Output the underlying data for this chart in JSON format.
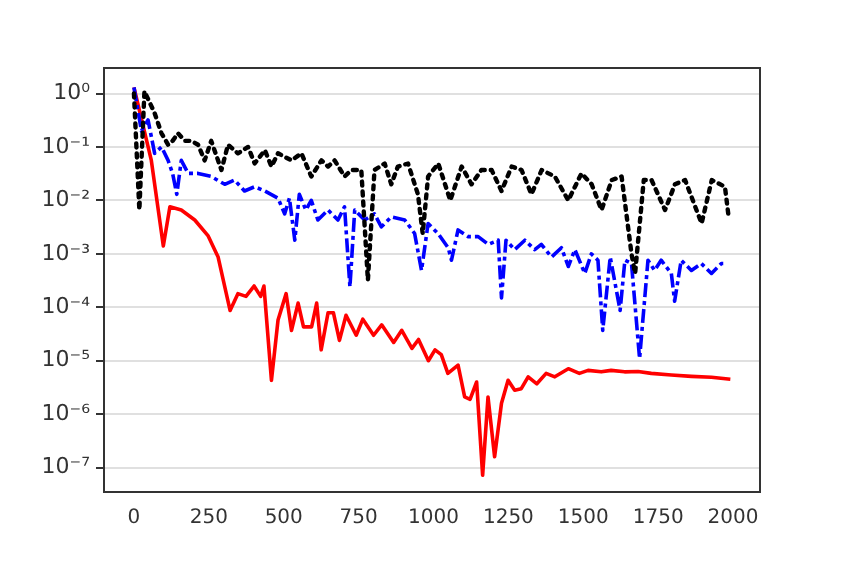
{
  "chart_data": {
    "type": "line",
    "log": "y",
    "grid": "y",
    "legend": false,
    "marker": "none",
    "xlim": [
      -100,
      2090
    ],
    "xticks": [
      0,
      250,
      500,
      750,
      1000,
      1250,
      1500,
      1750,
      2000
    ],
    "ylim": [
      3.5e-08,
      3
    ],
    "yticks": [
      {
        "value": 1e-07,
        "label": "10⁻⁷"
      },
      {
        "value": 1e-06,
        "label": "10⁻⁶"
      },
      {
        "value": 1e-05,
        "label": "10⁻⁵"
      },
      {
        "value": 0.0001,
        "label": "10⁻⁴"
      },
      {
        "value": 0.001,
        "label": "10⁻³"
      },
      {
        "value": 0.01,
        "label": "10⁻²"
      },
      {
        "value": 0.1,
        "label": "10⁻¹"
      },
      {
        "value": 1,
        "label": "10⁰"
      }
    ],
    "series": [
      {
        "color": "#000000",
        "line_style": "dotted",
        "x": [
          0,
          18,
          35,
          69,
          92,
          114,
          129,
          147,
          170,
          192,
          214,
          236,
          258,
          292,
          314,
          347,
          381,
          403,
          437,
          459,
          481,
          526,
          559,
          592,
          626,
          648,
          670,
          703,
          726,
          759,
          781,
          803,
          837,
          859,
          881,
          915,
          948,
          964,
          982,
          1016,
          1056,
          1094,
          1127,
          1160,
          1194,
          1227,
          1261,
          1294,
          1327,
          1361,
          1405,
          1450,
          1494,
          1528,
          1561,
          1595,
          1628,
          1661,
          1673,
          1702,
          1728,
          1773,
          1806,
          1840,
          1895,
          1929,
          1973,
          1984
        ],
        "values": [
          1.0,
          0.0066,
          1.1,
          0.43,
          0.18,
          0.11,
          0.13,
          0.18,
          0.13,
          0.13,
          0.11,
          0.056,
          0.13,
          0.037,
          0.11,
          0.076,
          0.1,
          0.049,
          0.087,
          0.043,
          0.076,
          0.056,
          0.076,
          0.028,
          0.056,
          0.043,
          0.056,
          0.028,
          0.037,
          0.037,
          0.00032,
          0.037,
          0.049,
          0.02,
          0.043,
          0.049,
          0.013,
          0.0024,
          0.028,
          0.049,
          0.01,
          0.043,
          0.02,
          0.037,
          0.037,
          0.015,
          0.043,
          0.037,
          0.013,
          0.037,
          0.028,
          0.01,
          0.032,
          0.02,
          0.0066,
          0.024,
          0.028,
          0.001,
          0.00043,
          0.024,
          0.024,
          0.0066,
          0.02,
          0.024,
          0.0037,
          0.024,
          0.018,
          0.0056
        ]
      },
      {
        "color": "#0000ff",
        "line_style": "dashed",
        "x": [
          0,
          25,
          47,
          69,
          92,
          114,
          129,
          143,
          158,
          181,
          214,
          258,
          303,
          336,
          369,
          403,
          437,
          481,
          503,
          519,
          537,
          552,
          574,
          592,
          614,
          648,
          681,
          703,
          721,
          737,
          770,
          803,
          826,
          859,
          904,
          937,
          960,
          982,
          1015,
          1049,
          1060,
          1082,
          1116,
          1149,
          1183,
          1216,
          1227,
          1242,
          1271,
          1305,
          1338,
          1360,
          1394,
          1427,
          1450,
          1472,
          1505,
          1527,
          1549,
          1565,
          1590,
          1623,
          1639,
          1661,
          1688,
          1716,
          1738,
          1760,
          1794,
          1805,
          1827,
          1861,
          1894,
          1928,
          1961,
          1977
        ],
        "values": [
          1.3,
          0.2,
          0.32,
          0.076,
          0.1,
          0.056,
          0.032,
          0.013,
          0.056,
          0.032,
          0.032,
          0.028,
          0.02,
          0.024,
          0.015,
          0.018,
          0.015,
          0.011,
          0.0056,
          0.011,
          0.0018,
          0.013,
          0.0066,
          0.01,
          0.0043,
          0.0066,
          0.0043,
          0.0076,
          0.00024,
          0.0066,
          0.0043,
          0.0056,
          0.0032,
          0.0049,
          0.0043,
          0.0024,
          0.00049,
          0.0037,
          0.0024,
          0.0013,
          0.00076,
          0.0028,
          0.0021,
          0.0021,
          0.0015,
          0.0018,
          0.00015,
          0.0018,
          0.0012,
          0.0018,
          0.0012,
          0.0015,
          0.00087,
          0.0013,
          0.00058,
          0.0012,
          0.00043,
          0.001,
          0.00076,
          3.7e-05,
          0.00087,
          8.7e-05,
          0.00076,
          0.00066,
          1.1e-05,
          0.00076,
          0.00049,
          0.00076,
          0.00043,
          0.00013,
          0.00076,
          0.00049,
          0.00066,
          0.00043,
          0.00066,
          0.00066
        ]
      },
      {
        "color": "#ff0000",
        "line_style": "solid",
        "x": [
          0,
          58,
          98,
          120,
          158,
          203,
          247,
          281,
          321,
          347,
          374,
          401,
          423,
          434,
          459,
          481,
          508,
          526,
          548,
          566,
          593,
          610,
          625,
          648,
          666,
          686,
          708,
          742,
          764,
          800,
          827,
          867,
          894,
          928,
          950,
          983,
          1005,
          1026,
          1048,
          1082,
          1104,
          1122,
          1144,
          1164,
          1182,
          1204,
          1227,
          1249,
          1271,
          1293,
          1316,
          1345,
          1376,
          1405,
          1450,
          1487,
          1516,
          1560,
          1593,
          1638,
          1683,
          1727,
          1794,
          1861,
          1928,
          1991
        ],
        "values": [
          1.3,
          0.056,
          0.0014,
          0.0076,
          0.0066,
          0.0043,
          0.0022,
          0.00087,
          8.7e-05,
          0.00018,
          0.00016,
          0.00025,
          0.00016,
          0.00025,
          4.3e-06,
          5.8e-05,
          0.00018,
          3.7e-05,
          0.00012,
          4.3e-05,
          4.3e-05,
          0.00012,
          1.6e-05,
          7.9e-05,
          7.9e-05,
          2.4e-05,
          7.1e-05,
          3e-05,
          6e-05,
          3e-05,
          4.7e-05,
          2.2e-05,
          3.7e-05,
          1.7e-05,
          2.5e-05,
          1e-05,
          1.6e-05,
          1.3e-05,
          5.8e-06,
          8.3e-06,
          2.1e-06,
          1.9e-06,
          4e-06,
          7.2e-08,
          2.1e-06,
          1.6e-07,
          1.6e-06,
          4.3e-06,
          2.8e-06,
          3e-06,
          5e-06,
          3.7e-06,
          5.8e-06,
          5e-06,
          7.1e-06,
          5.8e-06,
          6.6e-06,
          6.2e-06,
          6.6e-06,
          6.2e-06,
          6.3e-06,
          5.8e-06,
          5.4e-06,
          5.1e-06,
          4.9e-06,
          4.5e-06
        ]
      }
    ]
  }
}
